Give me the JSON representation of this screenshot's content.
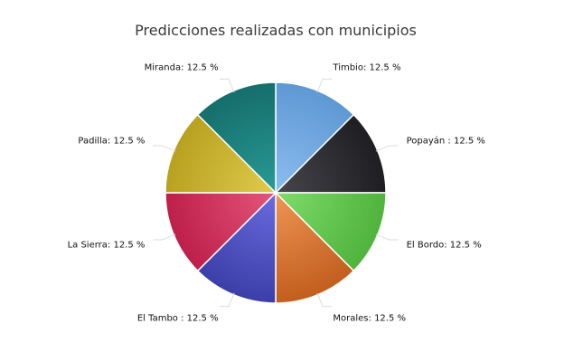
{
  "chart_data": {
    "type": "pie",
    "title": "Predicciones realizadas con municipios",
    "slices": [
      {
        "label": "Timbio: 12.5 %",
        "name": "Timbio",
        "value": 12.5,
        "color": "#5e98d3",
        "color_light": "#8cbdf0"
      },
      {
        "label": "Popayán : 12.5 %",
        "name": "Popayán",
        "value": 12.5,
        "color": "#1e1e22",
        "color_light": "#46464c"
      },
      {
        "label": "El Bordo: 12.5 %",
        "name": "El Bordo",
        "value": 12.5,
        "color": "#4fb33c",
        "color_light": "#7fdc6b"
      },
      {
        "label": "Morales: 12.5 %",
        "name": "Morales",
        "value": 12.5,
        "color": "#c25e1e",
        "color_light": "#ee9555"
      },
      {
        "label": "El Tambo : 12.5 %",
        "name": "El Tambo",
        "value": 12.5,
        "color": "#3c3ea8",
        "color_light": "#6a6ce0"
      },
      {
        "label": "La Sierra: 12.5 %",
        "name": "La Sierra",
        "value": 12.5,
        "color": "#bd1f49",
        "color_light": "#e4567c"
      },
      {
        "label": "Padilla: 12.5 %",
        "name": "Padilla",
        "value": 12.5,
        "color": "#b8a11f",
        "color_light": "#e0cb4b"
      },
      {
        "label": "Miranda: 12.5 %",
        "name": "Miranda",
        "value": 12.5,
        "color": "#156e6b",
        "color_light": "#2a9a95"
      }
    ],
    "start_angle_deg": 0,
    "direction": "clockwise"
  }
}
